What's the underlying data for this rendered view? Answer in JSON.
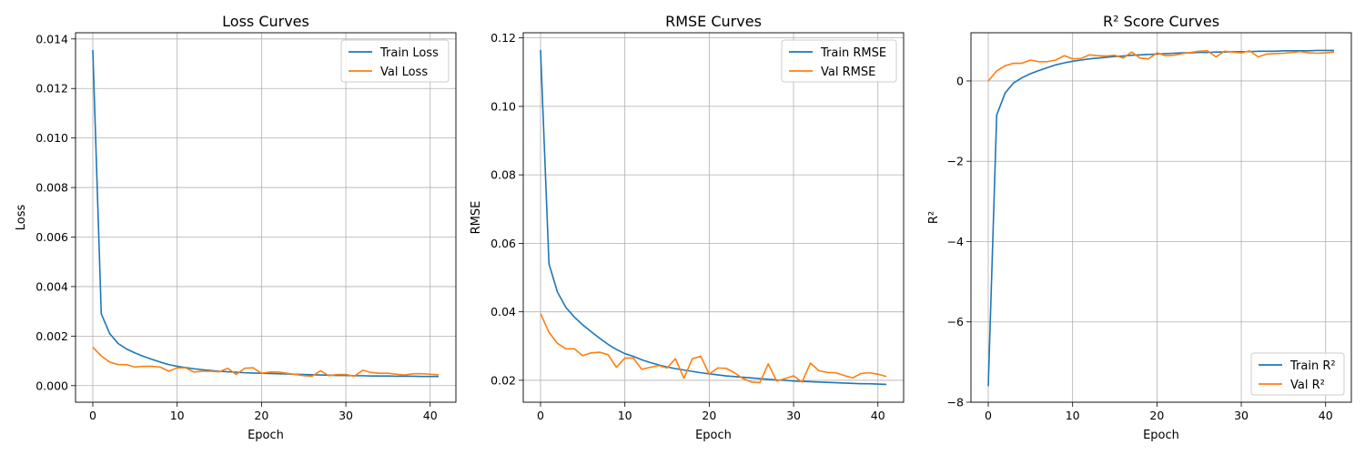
{
  "chart_data": [
    {
      "type": "line",
      "title": "Loss Curves",
      "xlabel": "Epoch",
      "ylabel": "Loss",
      "xlim": [
        -2.05,
        43.05
      ],
      "ylim": [
        -0.00067,
        0.01425
      ],
      "xticks": [
        0,
        10,
        20,
        30,
        40
      ],
      "xtick_labels": [
        "0",
        "10",
        "20",
        "30",
        "40"
      ],
      "yticks": [
        0.0,
        0.002,
        0.004,
        0.006,
        0.008,
        0.01,
        0.012,
        0.014
      ],
      "ytick_labels": [
        "0.000",
        "0.002",
        "0.004",
        "0.006",
        "0.008",
        "0.010",
        "0.012",
        "0.014"
      ],
      "grid": true,
      "legend_position": "top-right",
      "series": [
        {
          "name": "Train Loss",
          "color": "#1f77b4",
          "values": [
            0.01355,
            0.0029,
            0.0021,
            0.0017,
            0.00148,
            0.00132,
            0.00118,
            0.00106,
            0.00095,
            0.00085,
            0.00078,
            0.00073,
            0.00068,
            0.00064,
            0.00061,
            0.00058,
            0.00056,
            0.00054,
            0.00052,
            0.00051,
            0.0005,
            0.00049,
            0.00048,
            0.00047,
            0.00046,
            0.00045,
            0.00044,
            0.00043,
            0.00042,
            0.00041,
            0.00041,
            0.0004,
            0.0004,
            0.00039,
            0.00039,
            0.00039,
            0.00038,
            0.00038,
            0.00038,
            0.00037,
            0.00037,
            0.00037
          ]
        },
        {
          "name": "Val Loss",
          "color": "#ff7f0e",
          "values": [
            0.00155,
            0.0012,
            0.00095,
            0.00085,
            0.00085,
            0.00075,
            0.00078,
            0.00078,
            0.00075,
            0.00058,
            0.00072,
            0.00072,
            0.00055,
            0.00058,
            0.00058,
            0.00056,
            0.0007,
            0.00045,
            0.0007,
            0.00072,
            0.0005,
            0.00055,
            0.00055,
            0.0005,
            0.00045,
            0.0004,
            0.00038,
            0.0006,
            0.0004,
            0.00045,
            0.00045,
            0.00038,
            0.00062,
            0.00053,
            0.0005,
            0.0005,
            0.00046,
            0.00043,
            0.00048,
            0.00048,
            0.00046,
            0.00044
          ]
        }
      ]
    },
    {
      "type": "line",
      "title": "RMSE Curves",
      "xlabel": "Epoch",
      "ylabel": "RMSE",
      "xlim": [
        -2.05,
        43.05
      ],
      "ylim": [
        0.0136,
        0.1215
      ],
      "xticks": [
        0,
        10,
        20,
        30,
        40
      ],
      "xtick_labels": [
        "0",
        "10",
        "20",
        "30",
        "40"
      ],
      "yticks": [
        0.02,
        0.04,
        0.06,
        0.08,
        0.1,
        0.12
      ],
      "ytick_labels": [
        "0.02",
        "0.04",
        "0.06",
        "0.08",
        "0.10",
        "0.12"
      ],
      "grid": true,
      "legend_position": "top-right",
      "series": [
        {
          "name": "Train RMSE",
          "color": "#1f77b4",
          "values": [
            0.1165,
            0.054,
            0.0458,
            0.0413,
            0.0385,
            0.0362,
            0.0342,
            0.0323,
            0.0305,
            0.029,
            0.0278,
            0.027,
            0.026,
            0.0252,
            0.0245,
            0.0239,
            0.0234,
            0.023,
            0.0226,
            0.0222,
            0.0219,
            0.0216,
            0.0213,
            0.0211,
            0.0209,
            0.0207,
            0.0205,
            0.0203,
            0.0201,
            0.02,
            0.0198,
            0.0197,
            0.0196,
            0.0195,
            0.0194,
            0.0193,
            0.0192,
            0.0191,
            0.019,
            0.019,
            0.0189,
            0.0188
          ]
        },
        {
          "name": "Val RMSE",
          "color": "#ff7f0e",
          "values": [
            0.0395,
            0.034,
            0.0308,
            0.0292,
            0.0292,
            0.0272,
            0.028,
            0.0282,
            0.0275,
            0.0238,
            0.0265,
            0.0265,
            0.0232,
            0.0238,
            0.0243,
            0.0236,
            0.0263,
            0.0206,
            0.0263,
            0.027,
            0.0218,
            0.0236,
            0.0235,
            0.0222,
            0.0205,
            0.0195,
            0.0193,
            0.0248,
            0.0198,
            0.0205,
            0.0213,
            0.0195,
            0.025,
            0.0228,
            0.0223,
            0.0222,
            0.0214,
            0.0207,
            0.022,
            0.0222,
            0.0218,
            0.0211
          ]
        }
      ]
    },
    {
      "type": "line",
      "title": "R² Score Curves",
      "xlabel": "Epoch",
      "ylabel": "R²",
      "xlim": [
        -2.05,
        43.05
      ],
      "ylim": [
        -8.0,
        1.2
      ],
      "xticks": [
        0,
        10,
        20,
        30,
        40
      ],
      "xtick_labels": [
        "0",
        "10",
        "20",
        "30",
        "40"
      ],
      "yticks": [
        -8,
        -6,
        -4,
        -2,
        0
      ],
      "ytick_labels": [
        "−8",
        "−6",
        "−4",
        "−2",
        "0"
      ],
      "grid": true,
      "legend_position": "bottom-right",
      "series": [
        {
          "name": "Train R²",
          "color": "#1f77b4",
          "values": [
            -7.6,
            -0.85,
            -0.3,
            -0.05,
            0.08,
            0.18,
            0.26,
            0.33,
            0.4,
            0.45,
            0.49,
            0.52,
            0.55,
            0.57,
            0.59,
            0.61,
            0.62,
            0.64,
            0.65,
            0.66,
            0.67,
            0.68,
            0.69,
            0.7,
            0.7,
            0.71,
            0.71,
            0.72,
            0.72,
            0.73,
            0.73,
            0.73,
            0.74,
            0.74,
            0.74,
            0.75,
            0.75,
            0.75,
            0.75,
            0.76,
            0.76,
            0.76
          ]
        },
        {
          "name": "Val R²",
          "color": "#ff7f0e",
          "values": [
            0.0,
            0.25,
            0.38,
            0.44,
            0.44,
            0.52,
            0.48,
            0.48,
            0.52,
            0.63,
            0.55,
            0.56,
            0.65,
            0.63,
            0.62,
            0.64,
            0.57,
            0.72,
            0.57,
            0.55,
            0.7,
            0.63,
            0.64,
            0.68,
            0.71,
            0.74,
            0.75,
            0.6,
            0.74,
            0.72,
            0.7,
            0.75,
            0.6,
            0.67,
            0.68,
            0.69,
            0.71,
            0.73,
            0.7,
            0.69,
            0.7,
            0.72
          ]
        }
      ]
    }
  ]
}
